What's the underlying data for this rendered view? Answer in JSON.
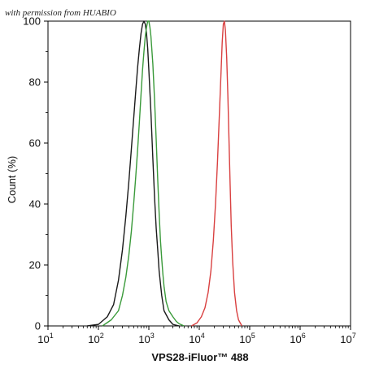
{
  "watermark": "with permission from HUABIO",
  "chart_data": {
    "type": "line",
    "title": "",
    "xlabel": "VPS28-iFluor™ 488",
    "ylabel": "Count  (%)",
    "x_scale": "log",
    "xlim": [
      10,
      10000000
    ],
    "ylim": [
      0,
      100
    ],
    "y_ticks": [
      0,
      20,
      40,
      60,
      80,
      100
    ],
    "x_tick_labels": [
      {
        "base": "10",
        "exp": "1",
        "value": 10
      },
      {
        "base": "10",
        "exp": "2",
        "value": 100
      },
      {
        "base": "10",
        "exp": "3",
        "value": 1000
      },
      {
        "base": "10",
        "exp": "4",
        "value": 10000
      },
      {
        "base": "10",
        "exp": "5",
        "value": 100000
      },
      {
        "base": "10",
        "exp": "6",
        "value": 1000000
      },
      {
        "base": "10",
        "exp": "7",
        "value": 10000000
      }
    ],
    "grid": false,
    "legend": "none",
    "series": [
      {
        "color": "#1a1a1a",
        "points": [
          [
            60,
            0
          ],
          [
            100,
            0.5
          ],
          [
            150,
            3
          ],
          [
            200,
            7
          ],
          [
            250,
            15
          ],
          [
            300,
            25
          ],
          [
            350,
            36
          ],
          [
            400,
            47
          ],
          [
            450,
            58
          ],
          [
            500,
            68
          ],
          [
            550,
            77
          ],
          [
            600,
            85
          ],
          [
            650,
            91
          ],
          [
            700,
            96
          ],
          [
            750,
            99
          ],
          [
            800,
            100
          ],
          [
            850,
            99
          ],
          [
            900,
            96
          ],
          [
            950,
            91
          ],
          [
            1000,
            84
          ],
          [
            1100,
            70
          ],
          [
            1200,
            55
          ],
          [
            1300,
            42
          ],
          [
            1400,
            32
          ],
          [
            1500,
            25
          ],
          [
            1600,
            18
          ],
          [
            1800,
            10
          ],
          [
            2000,
            5
          ],
          [
            2500,
            2
          ],
          [
            3000,
            0.5
          ],
          [
            4000,
            0
          ]
        ]
      },
      {
        "color": "#3a9a3a",
        "points": [
          [
            120,
            0
          ],
          [
            180,
            2
          ],
          [
            250,
            5
          ],
          [
            300,
            10
          ],
          [
            350,
            16
          ],
          [
            400,
            23
          ],
          [
            450,
            31
          ],
          [
            500,
            40
          ],
          [
            550,
            49
          ],
          [
            600,
            58
          ],
          [
            650,
            67
          ],
          [
            700,
            76
          ],
          [
            750,
            84
          ],
          [
            800,
            90
          ],
          [
            850,
            95
          ],
          [
            900,
            98
          ],
          [
            950,
            100
          ],
          [
            1000,
            100
          ],
          [
            1050,
            98
          ],
          [
            1100,
            95
          ],
          [
            1200,
            86
          ],
          [
            1300,
            74
          ],
          [
            1400,
            61
          ],
          [
            1500,
            48
          ],
          [
            1600,
            37
          ],
          [
            1700,
            28
          ],
          [
            1800,
            22
          ],
          [
            1900,
            17
          ],
          [
            2000,
            13
          ],
          [
            2200,
            8
          ],
          [
            2500,
            5
          ],
          [
            3000,
            3
          ],
          [
            3500,
            1.5
          ],
          [
            4000,
            0.7
          ],
          [
            5000,
            0
          ]
        ]
      },
      {
        "color": "#d94040",
        "points": [
          [
            7000,
            0
          ],
          [
            9000,
            1
          ],
          [
            11000,
            3
          ],
          [
            13000,
            6
          ],
          [
            15000,
            11
          ],
          [
            17000,
            18
          ],
          [
            19000,
            28
          ],
          [
            21000,
            40
          ],
          [
            23000,
            54
          ],
          [
            25000,
            69
          ],
          [
            27000,
            83
          ],
          [
            28500,
            93
          ],
          [
            30000,
            99
          ],
          [
            31500,
            100
          ],
          [
            33000,
            97
          ],
          [
            35000,
            88
          ],
          [
            37000,
            75
          ],
          [
            39000,
            60
          ],
          [
            41000,
            46
          ],
          [
            43000,
            33
          ],
          [
            46000,
            21
          ],
          [
            50000,
            11
          ],
          [
            55000,
            5
          ],
          [
            60000,
            2
          ],
          [
            70000,
            0
          ]
        ]
      }
    ]
  }
}
